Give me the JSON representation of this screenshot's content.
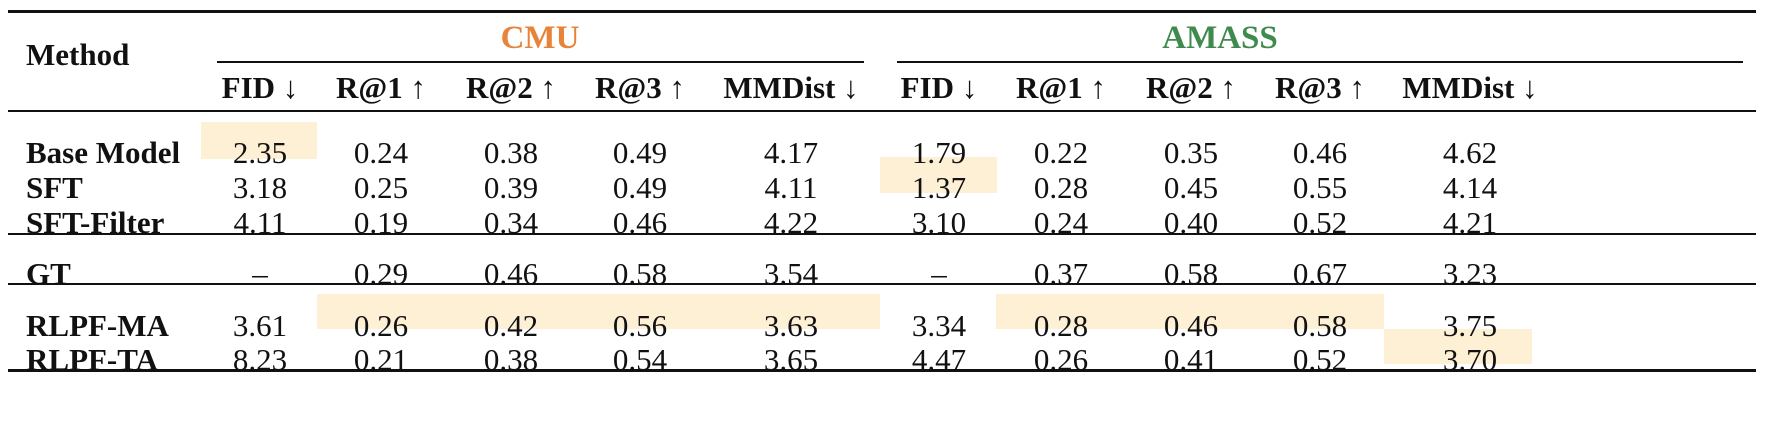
{
  "table": {
    "method_label": "Method",
    "groups": [
      {
        "name": "CMU",
        "color": "#e8833a"
      },
      {
        "name": "AMASS",
        "color": "#3f8a4c"
      }
    ],
    "columns": [
      "FID ↓",
      "R@1 ↑",
      "R@2 ↑",
      "R@3 ↑",
      "MMDist ↓",
      "FID ↓",
      "R@1 ↑",
      "R@2 ↑",
      "R@3 ↑",
      "MMDist ↓"
    ],
    "highlight_color": "#fdf0d5",
    "rows": [
      {
        "method": "Base Model",
        "values": [
          "2.35",
          "0.24",
          "0.38",
          "0.49",
          "4.17",
          "1.79",
          "0.22",
          "0.35",
          "0.46",
          "4.62"
        ],
        "highlight": [
          0
        ]
      },
      {
        "method": "SFT",
        "values": [
          "3.18",
          "0.25",
          "0.39",
          "0.49",
          "4.11",
          "1.37",
          "0.28",
          "0.45",
          "0.55",
          "4.14"
        ],
        "highlight": [
          5
        ]
      },
      {
        "method": "SFT-Filter",
        "values": [
          "4.11",
          "0.19",
          "0.34",
          "0.46",
          "4.22",
          "3.10",
          "0.24",
          "0.40",
          "0.52",
          "4.21"
        ],
        "highlight": []
      },
      {
        "method": "GT",
        "values": [
          "–",
          "0.29",
          "0.46",
          "0.58",
          "3.54",
          "–",
          "0.37",
          "0.58",
          "0.67",
          "3.23"
        ],
        "highlight": []
      },
      {
        "method": "RLPF-MA",
        "values": [
          "3.61",
          "0.26",
          "0.42",
          "0.56",
          "3.63",
          "3.34",
          "0.28",
          "0.46",
          "0.58",
          "3.75"
        ],
        "highlight": [
          1,
          2,
          3,
          4,
          6,
          7,
          8
        ]
      },
      {
        "method": "RLPF-TA",
        "values": [
          "8.23",
          "0.21",
          "0.38",
          "0.54",
          "3.65",
          "4.47",
          "0.26",
          "0.41",
          "0.52",
          "3.70"
        ],
        "highlight": [
          9
        ]
      }
    ]
  }
}
